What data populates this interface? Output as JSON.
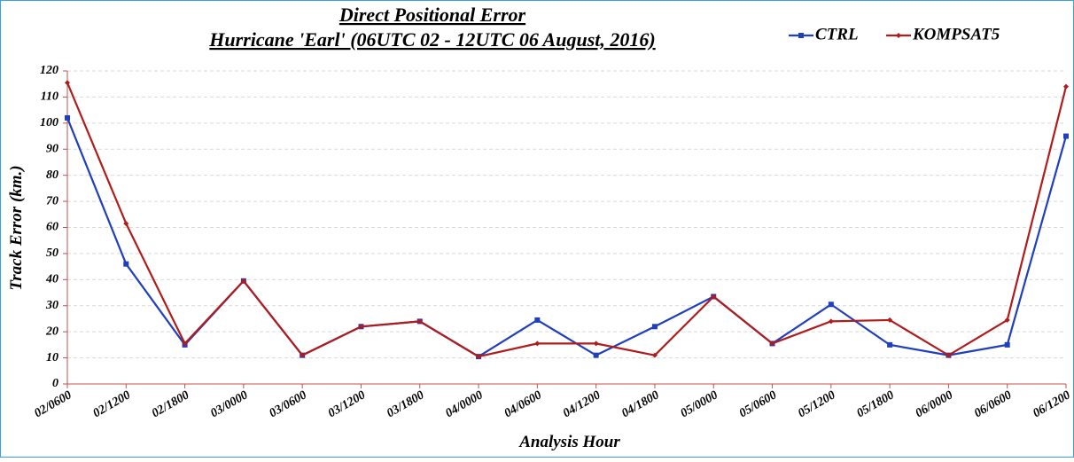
{
  "chart_data": {
    "type": "line",
    "title": "Direct Positional Error",
    "subtitle": "Hurricane 'Earl' (06UTC 02 - 12UTC 06 August, 2016)",
    "x_label": "Analysis Hour",
    "y_label": "Track Error (km.)",
    "categories": [
      "02/0600",
      "02/1200",
      "02/1800",
      "03/0000",
      "03/0600",
      "03/1200",
      "03/1800",
      "04/0000",
      "04/0600",
      "04/1200",
      "04/1800",
      "05/0000",
      "05/0600",
      "05/1200",
      "05/1800",
      "06/0000",
      "06/0600",
      "06/1200"
    ],
    "series": [
      {
        "name": "CTRL",
        "color": "#1f3fbf",
        "values": [
          102,
          46,
          15,
          39.5,
          11,
          22,
          24,
          10.5,
          24.5,
          11,
          22,
          33.5,
          15.5,
          30.5,
          15,
          11,
          15,
          95
        ]
      },
      {
        "name": "KOMPSAT5",
        "color": "#b01c1c",
        "values": [
          115.5,
          61.5,
          15.5,
          39.5,
          11,
          22,
          24,
          10.5,
          15.5,
          15.5,
          11,
          33.5,
          15.5,
          24,
          24.5,
          11,
          24.5,
          114
        ]
      }
    ],
    "ylim": [
      0,
      120
    ],
    "yticks": [
      0,
      10,
      20,
      30,
      40,
      50,
      60,
      70,
      80,
      90,
      100,
      110,
      120
    ],
    "grid": true,
    "legend": "top-right"
  }
}
